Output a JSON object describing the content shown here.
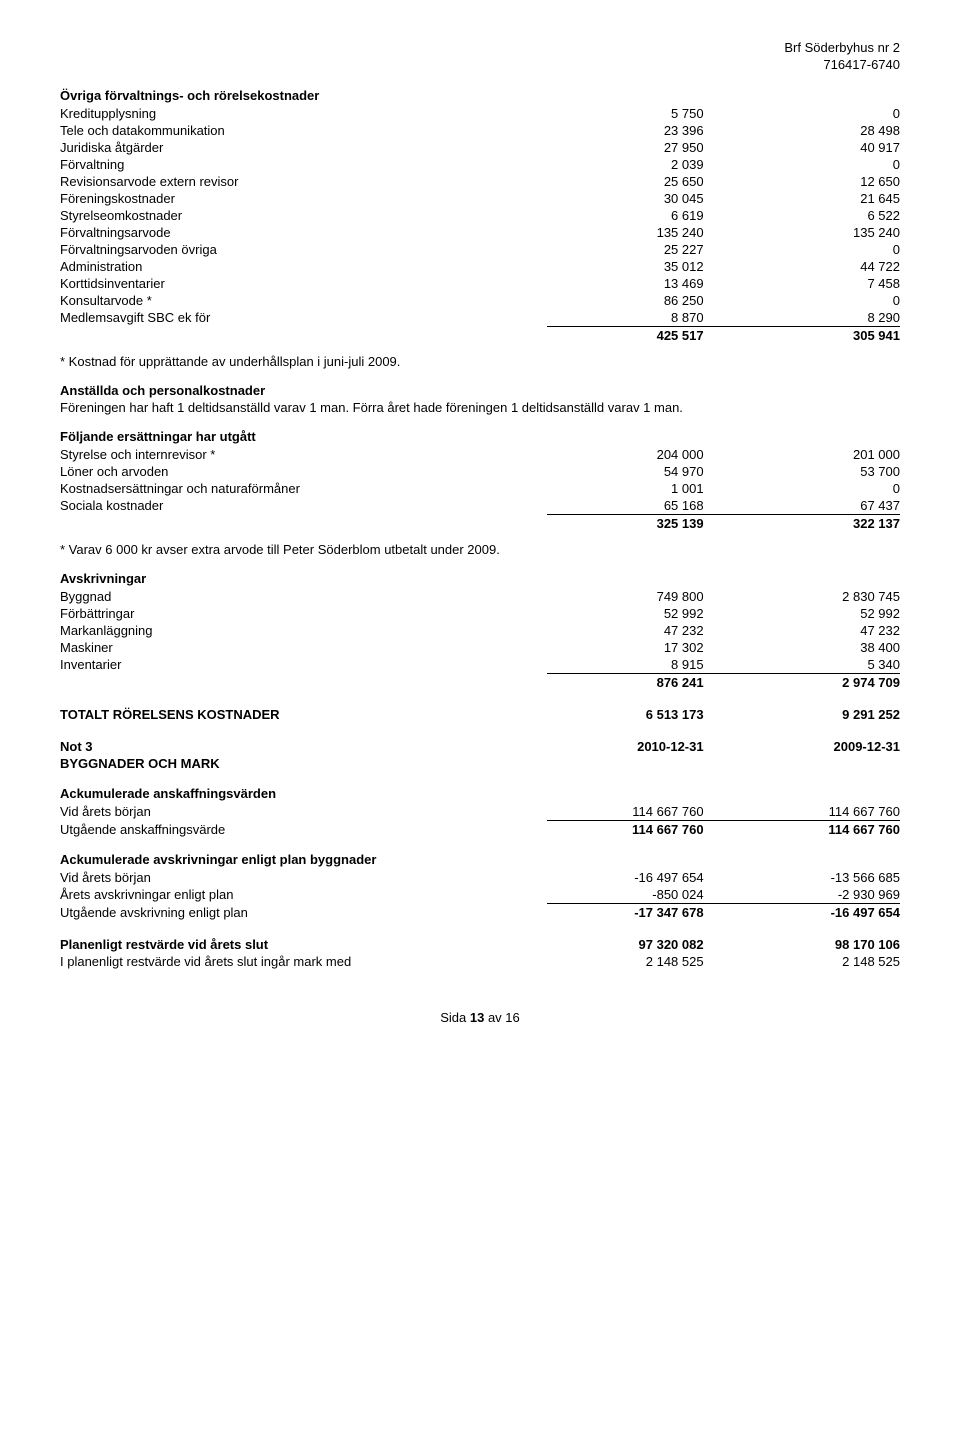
{
  "header": {
    "org": "Brf Söderbyhus nr 2",
    "orgnr": "716417-6740"
  },
  "sec1": {
    "title": "Övriga förvaltnings- och rörelsekostnader",
    "rows": [
      {
        "l": "Kreditupplysning",
        "a": "5 750",
        "b": "0"
      },
      {
        "l": "Tele och datakommunikation",
        "a": "23 396",
        "b": "28 498"
      },
      {
        "l": "Juridiska åtgärder",
        "a": "27 950",
        "b": "40 917"
      },
      {
        "l": "Förvaltning",
        "a": "2 039",
        "b": "0"
      },
      {
        "l": "Revisionsarvode extern revisor",
        "a": "25 650",
        "b": "12 650"
      },
      {
        "l": "Föreningskostnader",
        "a": "30 045",
        "b": "21 645"
      },
      {
        "l": "Styrelseomkostnader",
        "a": "6 619",
        "b": "6 522"
      },
      {
        "l": "Förvaltningsarvode",
        "a": "135 240",
        "b": "135 240"
      },
      {
        "l": "Förvaltningsarvoden övriga",
        "a": "25 227",
        "b": "0"
      },
      {
        "l": "Administration",
        "a": "35 012",
        "b": "44 722"
      },
      {
        "l": "Korttidsinventarier",
        "a": "13 469",
        "b": "7 458"
      },
      {
        "l": "Konsultarvode *",
        "a": "86 250",
        "b": "0"
      },
      {
        "l": "Medlemsavgift SBC ek för",
        "a": "8 870",
        "b": "8 290"
      }
    ],
    "sum": {
      "a": "425 517",
      "b": "305 941"
    }
  },
  "note1": "* Kostnad för upprättande av underhållsplan i juni-juli 2009.",
  "sec2": {
    "title": "Anställda och personalkostnader",
    "text": "Föreningen har haft 1 deltidsanställd varav 1 man. Förra året hade föreningen 1 deltidsanställd varav 1 man."
  },
  "sec3": {
    "title": "Följande ersättningar har utgått",
    "rows": [
      {
        "l": "Styrelse och internrevisor *",
        "a": "204 000",
        "b": "201 000"
      },
      {
        "l": "Löner och arvoden",
        "a": "54 970",
        "b": "53 700"
      },
      {
        "l": "Kostnadsersättningar och naturaförmåner",
        "a": "1 001",
        "b": "0"
      },
      {
        "l": "Sociala kostnader",
        "a": "65 168",
        "b": "67 437"
      }
    ],
    "sum": {
      "a": "325 139",
      "b": "322 137"
    }
  },
  "note2": "* Varav 6 000 kr avser extra arvode till Peter Söderblom utbetalt under 2009.",
  "sec4": {
    "title": "Avskrivningar",
    "rows": [
      {
        "l": "Byggnad",
        "a": "749 800",
        "b": "2 830 745"
      },
      {
        "l": "Förbättringar",
        "a": "52 992",
        "b": "52 992"
      },
      {
        "l": "Markanläggning",
        "a": "47 232",
        "b": "47 232"
      },
      {
        "l": "Maskiner",
        "a": "17 302",
        "b": "38 400"
      },
      {
        "l": "Inventarier",
        "a": "8 915",
        "b": "5 340"
      }
    ],
    "sum": {
      "a": "876 241",
      "b": "2 974 709"
    }
  },
  "total": {
    "l": "TOTALT RÖRELSENS KOSTNADER",
    "a": "6 513 173",
    "b": "9 291 252"
  },
  "not3": {
    "l": "Not 3",
    "a": "2010-12-31",
    "b": "2009-12-31",
    "sub": "BYGGNADER OCH MARK"
  },
  "sec5": {
    "title": "Ackumulerade anskaffningsvärden",
    "rows": [
      {
        "l": "Vid årets början",
        "a": "114 667 760",
        "b": "114 667 760"
      }
    ],
    "sum": {
      "l": "Utgående anskaffningsvärde",
      "a": "114 667 760",
      "b": "114 667 760"
    }
  },
  "sec6": {
    "title": "Ackumulerade avskrivningar enligt plan byggnader",
    "rows": [
      {
        "l": "Vid årets början",
        "a": "-16 497 654",
        "b": "-13 566 685"
      },
      {
        "l": "Årets avskrivningar enligt plan",
        "a": "-850 024",
        "b": "-2 930 969"
      }
    ],
    "sum": {
      "l": "Utgående avskrivning enligt plan",
      "a": "-17 347 678",
      "b": "-16 497 654"
    }
  },
  "sec7": {
    "rows": [
      {
        "l": "Planenligt restvärde vid årets slut",
        "a": "97 320 082",
        "b": "98 170 106",
        "bold": true
      },
      {
        "l": "I planenligt restvärde vid årets slut ingår mark med",
        "a": "2 148 525",
        "b": "2 148 525"
      }
    ]
  },
  "footer": {
    "pre": "Sida ",
    "p": "13",
    "post": " av 16"
  }
}
